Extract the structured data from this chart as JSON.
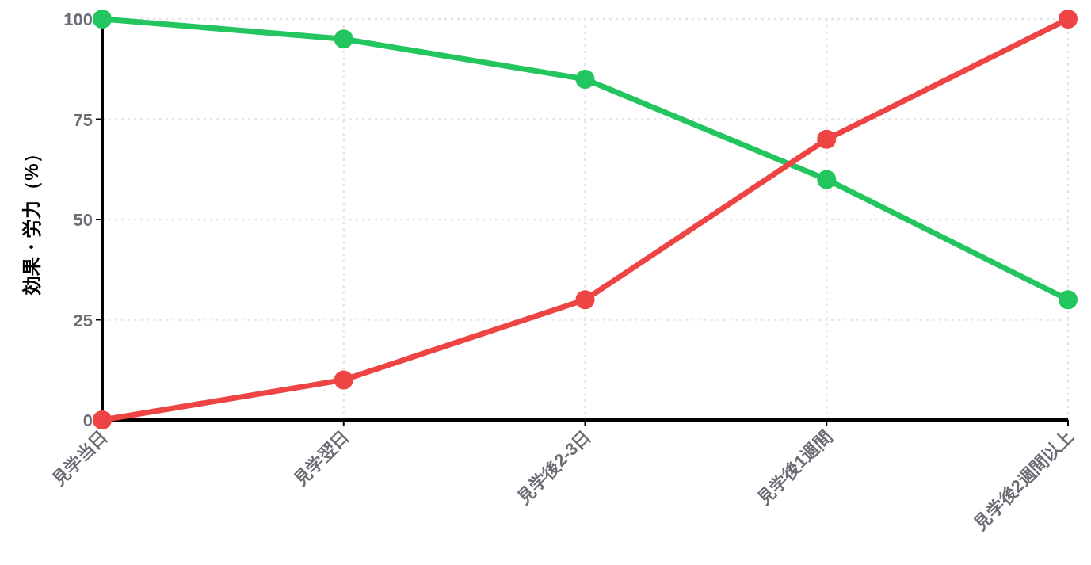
{
  "chart_data": {
    "type": "line",
    "ylabel": "効果・労力（%）",
    "categories": [
      "見学当日",
      "見学翌日",
      "見学後2-3日",
      "見学後1週間",
      "見学後2週間以上"
    ],
    "series": [
      {
        "color": "#22c55e",
        "values": [
          100,
          95,
          85,
          60,
          30
        ]
      },
      {
        "color": "#ef4444",
        "values": [
          0,
          10,
          30,
          70,
          100
        ]
      }
    ],
    "ylim": [
      0,
      100
    ],
    "yticks": [
      0,
      25,
      50,
      75,
      100
    ],
    "grid": true,
    "marker": "circle",
    "line_style": "solid"
  }
}
